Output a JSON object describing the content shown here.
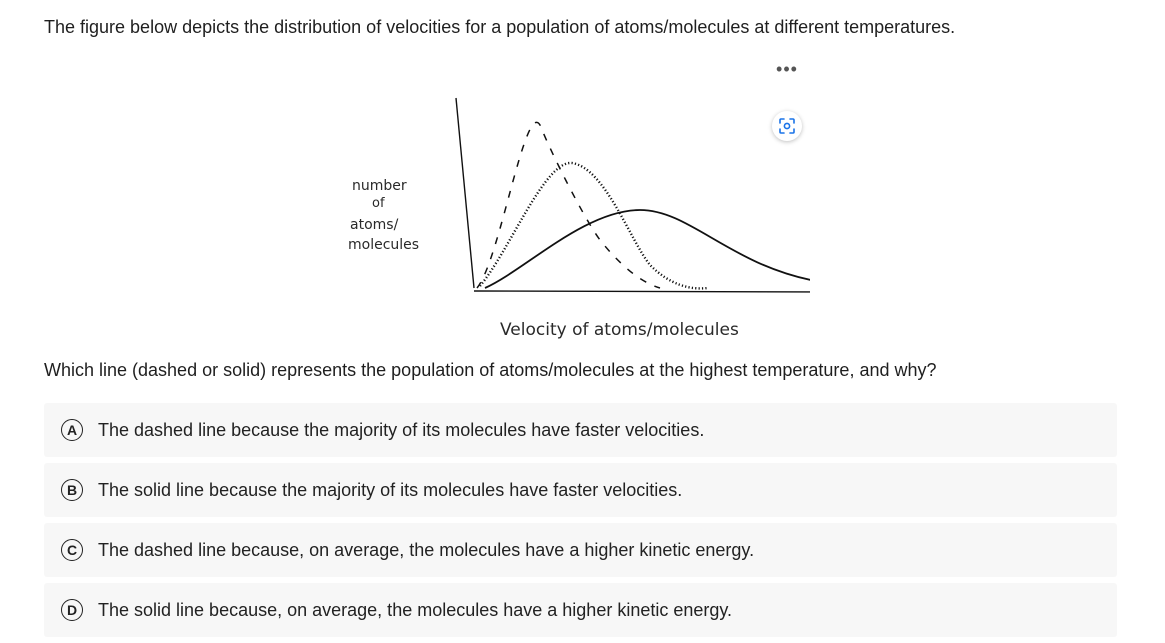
{
  "intro_text": "The figure below depicts the distribution of velocities for a population of atoms/molecules at different temperatures.",
  "figure": {
    "y_label_lines": [
      "number",
      "of",
      "atoms/",
      "molecules"
    ],
    "x_label": "Velocity of atoms/molecules",
    "menu_icon": "more-dots-icon",
    "lens_icon": "image-search-icon"
  },
  "question": "Which line (dashed or solid) represents the population of atoms/molecules at the highest temperature, and why?",
  "options": [
    {
      "letter": "A",
      "text": "The dashed line because the majority of its molecules have faster velocities."
    },
    {
      "letter": "B",
      "text": "The solid line because the majority of its molecules have faster velocities."
    },
    {
      "letter": "C",
      "text": "The dashed line because, on average, the molecules have a higher kinetic energy."
    },
    {
      "letter": "D",
      "text": "The solid line because, on average, the molecules have a higher kinetic energy."
    }
  ]
}
